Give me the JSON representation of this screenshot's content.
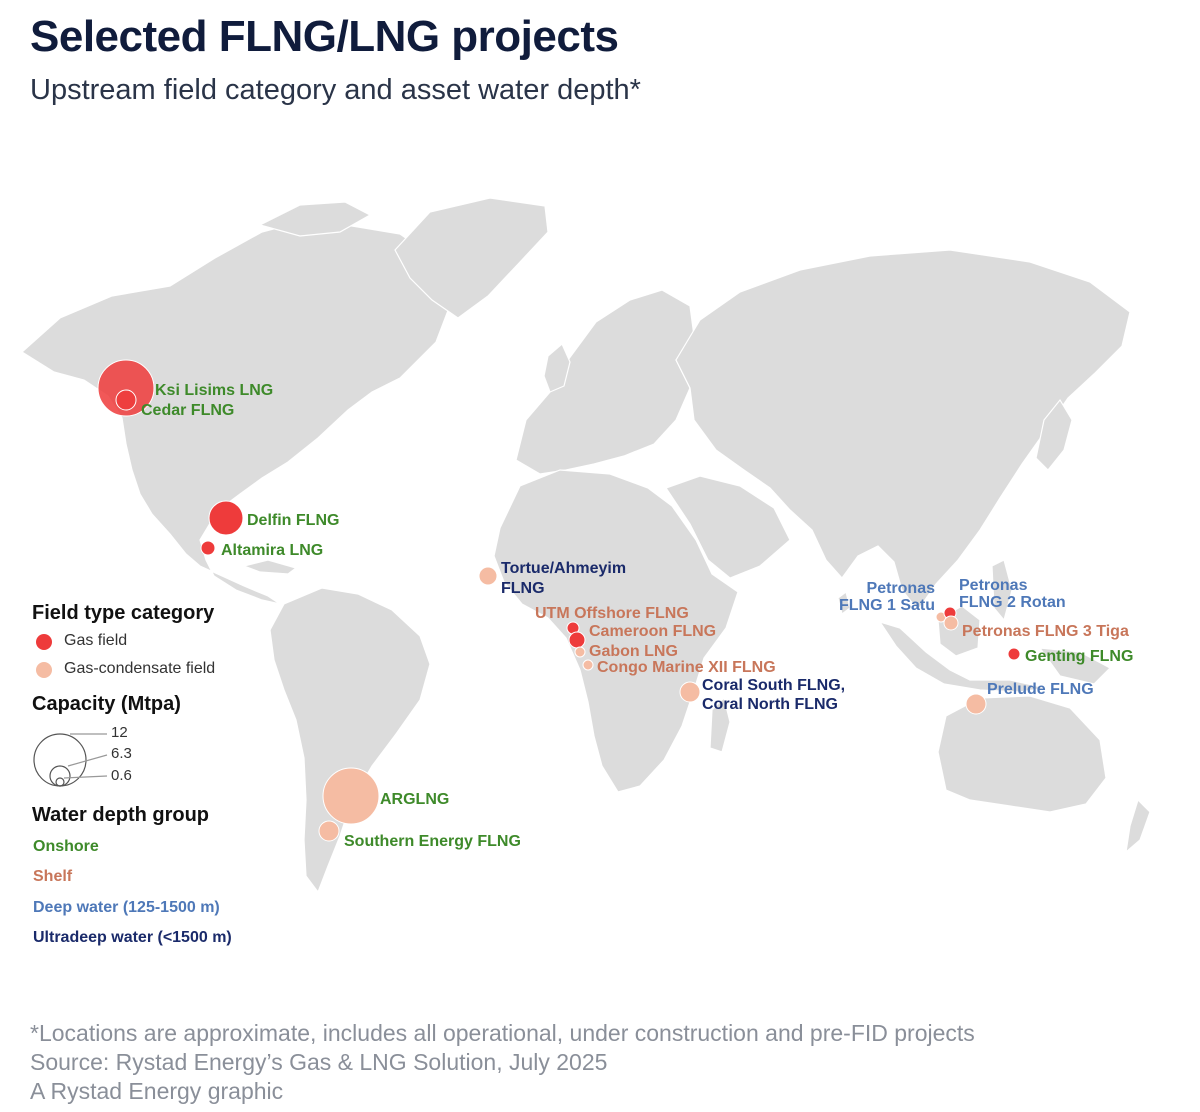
{
  "header": {
    "title": "Selected FLNG/LNG projects",
    "subtitle": "Upstream field category and asset water depth*"
  },
  "colors": {
    "gas_field": "#ee3b3b",
    "gas_condensate": "#f5bca3",
    "onshore": "#3e8a2a",
    "shelf": "#c8765a",
    "deep": "#4e78b8",
    "ultradeep": "#1a2a6a",
    "land": "#dcdcdc"
  },
  "legend": {
    "field_title": "Field type category",
    "gas_field": "Gas field",
    "gas_condensate": "Gas-condensate field",
    "capacity_title": "Capacity (Mtpa)",
    "cap_12": "12",
    "cap_63": "6.3",
    "cap_06": "0.6",
    "depth_title": "Water depth group",
    "onshore": "Onshore",
    "shelf": "Shelf",
    "deep": "Deep water (125-1500 m)",
    "ultradeep": "Ultradeep water (<1500 m)"
  },
  "projects": [
    {
      "name": "Ksi Lisims LNG",
      "field": "gas",
      "depth": "onshore"
    },
    {
      "name": "Cedar FLNG",
      "field": "gas",
      "depth": "onshore"
    },
    {
      "name": "Delfin FLNG",
      "field": "gas",
      "depth": "onshore"
    },
    {
      "name": "Altamira LNG",
      "field": "gas",
      "depth": "onshore"
    },
    {
      "name": "Tortue/Ahmeyim",
      "name2": "FLNG",
      "field": "condensate",
      "depth": "ultradeep"
    },
    {
      "name": "UTM Offshore FLNG",
      "field": "gas",
      "depth": "shelf"
    },
    {
      "name": "Cameroon FLNG",
      "field": "gas",
      "depth": "shelf"
    },
    {
      "name": "Gabon LNG",
      "field": "condensate",
      "depth": "shelf"
    },
    {
      "name": "Congo Marine XII FLNG",
      "field": "condensate",
      "depth": "shelf"
    },
    {
      "name": "Coral South FLNG,",
      "name2": "Coral North FLNG",
      "field": "condensate",
      "depth": "ultradeep"
    },
    {
      "name": "ARGLNG",
      "field": "condensate",
      "depth": "onshore"
    },
    {
      "name": "Southern Energy FLNG",
      "field": "condensate",
      "depth": "onshore"
    },
    {
      "name": "Petronas",
      "name2": "FLNG 1 Satu",
      "field": "condensate",
      "depth": "deep"
    },
    {
      "name": "Petronas",
      "name2": "FLNG 2 Rotan",
      "field": "gas",
      "depth": "deep"
    },
    {
      "name": "Petronas FLNG 3 Tiga",
      "field": "condensate",
      "depth": "shelf"
    },
    {
      "name": "Genting FLNG",
      "field": "gas",
      "depth": "onshore"
    },
    {
      "name": "Prelude FLNG",
      "field": "condensate",
      "depth": "deep"
    }
  ],
  "footer": {
    "note": "*Locations are approximate, includes all operational, under construction and pre-FID projects",
    "source": "Source: Rystad Energy’s Gas & LNG Solution, July 2025",
    "credit": "A Rystad Energy graphic"
  }
}
